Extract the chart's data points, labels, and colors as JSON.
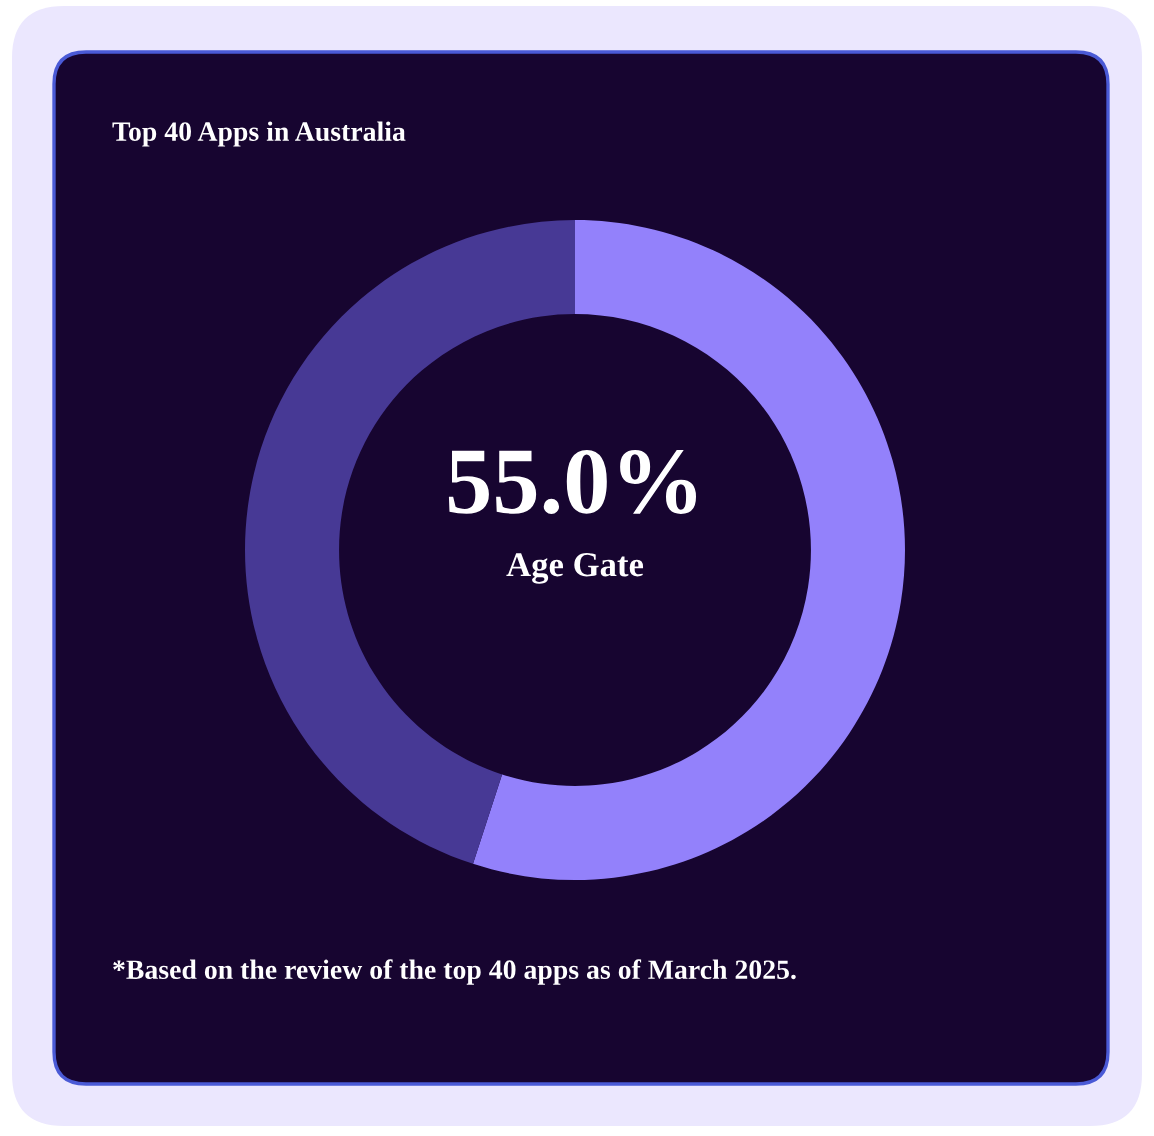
{
  "chart_data": {
    "type": "donut",
    "title": "Top 40 Apps in Australia",
    "categories": [
      "Age Gate",
      null
    ],
    "values": [
      55.0,
      45.0
    ],
    "colors": [
      "#9381fb",
      "#473995"
    ],
    "value_labels": [
      "55.0%",
      null
    ],
    "annotations": [
      "*Based on the review of the top 40 apps as of March 2025."
    ]
  }
}
